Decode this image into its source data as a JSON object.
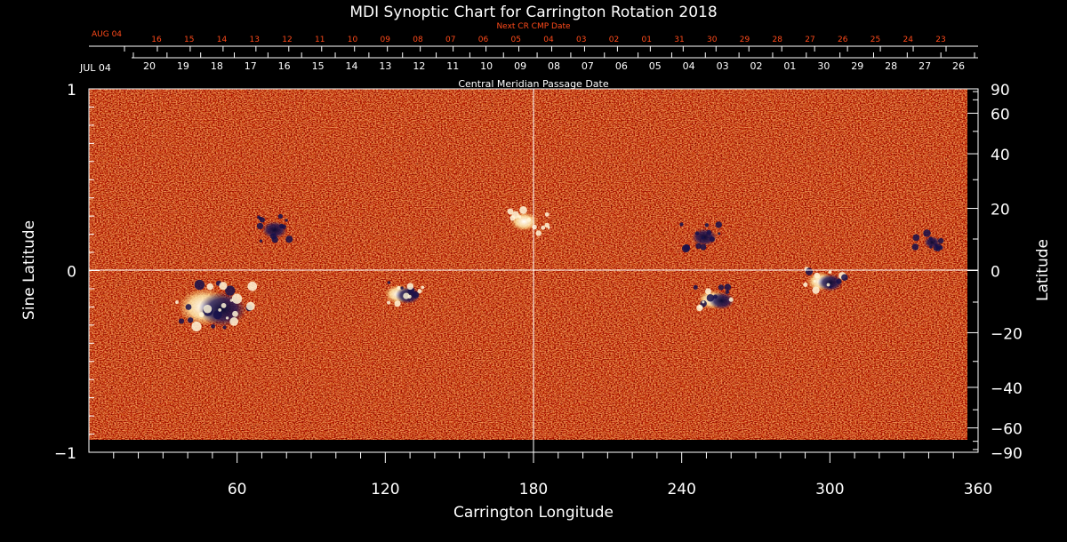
{
  "chart_data": {
    "type": "heatmap",
    "title": "MDI Synoptic Chart for Carrington Rotation 2018",
    "xlabel": "Carrington Longitude",
    "ylabel": "Sine Latitude",
    "y2label": "Latitude",
    "xlim": [
      0,
      360
    ],
    "ylim": [
      -1,
      1
    ],
    "x_ticks": [
      60,
      120,
      180,
      240,
      300,
      360
    ],
    "y_ticks": [
      {
        "value": 1,
        "label": "1"
      },
      {
        "value": 0,
        "label": "0"
      },
      {
        "value": -1,
        "label": "−1"
      }
    ],
    "lat_ticks_labeled": [
      {
        "deg": 90,
        "label": "90"
      },
      {
        "deg": 60,
        "label": "60"
      },
      {
        "deg": 40,
        "label": "40"
      },
      {
        "deg": 20,
        "label": "20"
      },
      {
        "deg": 0,
        "label": "0"
      },
      {
        "deg": -20,
        "label": "−20"
      },
      {
        "deg": -40,
        "label": "−40"
      },
      {
        "deg": -60,
        "label": "−60"
      },
      {
        "deg": -90,
        "label": "−90"
      }
    ],
    "lat_ticks_minor": [
      80,
      70,
      50,
      30,
      10,
      -10,
      -30,
      -50,
      -70,
      -80
    ],
    "cmp_axis": {
      "label": "Central Meridian Passage Date",
      "month_label": "JUL 04",
      "dates": [
        "20",
        "19",
        "18",
        "17",
        "16",
        "15",
        "14",
        "13",
        "12",
        "11",
        "10",
        "09",
        "08",
        "07",
        "06",
        "05",
        "04",
        "03",
        "02",
        "01",
        "30",
        "29",
        "28",
        "27",
        "26"
      ]
    },
    "next_cr_axis": {
      "label": "Next CR CMP Date",
      "month_label": "AUG 04",
      "dates": [
        "16",
        "15",
        "14",
        "13",
        "12",
        "11",
        "10",
        "09",
        "08",
        "07",
        "06",
        "05",
        "04",
        "03",
        "02",
        "01",
        "31",
        "30",
        "29",
        "28",
        "27",
        "26",
        "25",
        "24",
        "23"
      ]
    },
    "active_regions": [
      {
        "lon": 50,
        "sinlat": -0.2,
        "polarity": "mixed",
        "strength": "strong"
      },
      {
        "lon": 73,
        "sinlat": 0.23,
        "polarity": "negative",
        "strength": "moderate"
      },
      {
        "lon": 127,
        "sinlat": -0.13,
        "polarity": "mixed",
        "strength": "moderate"
      },
      {
        "lon": 178,
        "sinlat": 0.27,
        "polarity": "positive",
        "strength": "moderate"
      },
      {
        "lon": 247,
        "sinlat": 0.19,
        "polarity": "negative",
        "strength": "moderate"
      },
      {
        "lon": 254,
        "sinlat": -0.16,
        "polarity": "mixed",
        "strength": "moderate"
      },
      {
        "lon": 298,
        "sinlat": -0.06,
        "polarity": "mixed",
        "strength": "moderate"
      },
      {
        "lon": 340,
        "sinlat": 0.16,
        "polarity": "negative",
        "strength": "weak"
      }
    ],
    "colors": {
      "background_field": "#e2480f",
      "positive_polarity": "#ffffff",
      "negative_polarity": "#1a1248",
      "cmp_dates": "#ffffff",
      "next_cr_dates": "#ff4a1a",
      "axes": "#ffffff"
    },
    "grid": false
  }
}
